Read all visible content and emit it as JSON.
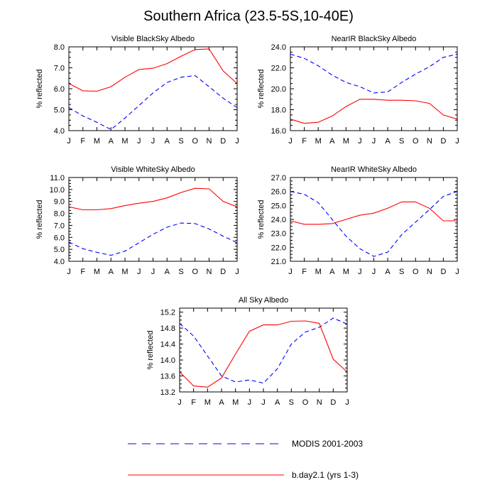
{
  "figure": {
    "title": "Southern Africa (23.5-5S,10-40E)"
  },
  "legend": [
    {
      "label": "MODIS 2001-2003",
      "color": "#0000ff",
      "dash": "dashed"
    },
    {
      "label": "b.day2.1 (yrs 1-3)",
      "color": "#ff0000",
      "dash": "solid"
    }
  ],
  "chart_data": [
    {
      "type": "line",
      "title": "Visible BlackSky Albedo",
      "ylabel": "% reflected",
      "x": [
        "J",
        "F",
        "M",
        "A",
        "M",
        "J",
        "J",
        "A",
        "S",
        "O",
        "N",
        "D",
        "J"
      ],
      "ylim": [
        4.0,
        8.0
      ],
      "yticks": [
        4.0,
        5.0,
        6.0,
        7.0,
        8.0
      ],
      "ytick_labels": [
        "4.0",
        "5.0",
        "6.0",
        "7.0",
        "8.0"
      ],
      "series": [
        {
          "name": "MODIS 2001-2003",
          "color": "#0000ff",
          "dash": "dashed",
          "values": [
            5.1,
            4.7,
            4.4,
            4.05,
            4.6,
            5.2,
            5.8,
            6.3,
            6.55,
            6.63,
            6.1,
            5.55,
            5.1
          ]
        },
        {
          "name": "b.day2.1 (yrs 1-3)",
          "color": "#ff0000",
          "dash": "solid",
          "values": [
            6.25,
            5.9,
            5.88,
            6.1,
            6.55,
            6.92,
            6.98,
            7.2,
            7.55,
            7.87,
            7.9,
            6.85,
            6.25
          ]
        }
      ]
    },
    {
      "type": "line",
      "title": "NearIR BlackSky Albedo",
      "ylabel": "% reflected",
      "x": [
        "J",
        "F",
        "M",
        "A",
        "M",
        "J",
        "J",
        "A",
        "S",
        "O",
        "N",
        "D",
        "J"
      ],
      "ylim": [
        16.0,
        24.0
      ],
      "yticks": [
        16.0,
        18.0,
        20.0,
        22.0,
        24.0
      ],
      "ytick_labels": [
        "16.0",
        "18.0",
        "20.0",
        "22.0",
        "24.0"
      ],
      "series": [
        {
          "name": "MODIS 2001-2003",
          "color": "#0000ff",
          "dash": "dashed",
          "values": [
            23.3,
            22.9,
            22.2,
            21.3,
            20.6,
            20.2,
            19.6,
            19.7,
            20.6,
            21.4,
            22.1,
            23.0,
            23.3
          ]
        },
        {
          "name": "b.day2.1 (yrs 1-3)",
          "color": "#ff0000",
          "dash": "solid",
          "values": [
            17.1,
            16.7,
            16.8,
            17.4,
            18.3,
            19.0,
            19.0,
            18.9,
            18.9,
            18.85,
            18.6,
            17.5,
            17.1
          ]
        }
      ]
    },
    {
      "type": "line",
      "title": "Visible WhiteSky Albedo",
      "ylabel": "% reflected",
      "x": [
        "J",
        "F",
        "M",
        "A",
        "M",
        "J",
        "J",
        "A",
        "S",
        "O",
        "N",
        "D",
        "J"
      ],
      "ylim": [
        4.0,
        11.0
      ],
      "yticks": [
        4.0,
        5.0,
        6.0,
        7.0,
        8.0,
        9.0,
        10.0,
        11.0
      ],
      "ytick_labels": [
        "4.0",
        "5.0",
        "6.0",
        "7.0",
        "8.0",
        "9.0",
        "10.0",
        "11.0"
      ],
      "series": [
        {
          "name": "MODIS 2001-2003",
          "color": "#0000ff",
          "dash": "dashed",
          "values": [
            5.6,
            5.05,
            4.75,
            4.5,
            4.85,
            5.55,
            6.25,
            6.85,
            7.2,
            7.15,
            6.7,
            6.1,
            5.55
          ]
        },
        {
          "name": "b.day2.1 (yrs 1-3)",
          "color": "#ff0000",
          "dash": "solid",
          "values": [
            8.55,
            8.3,
            8.3,
            8.4,
            8.65,
            8.85,
            9.0,
            9.3,
            9.75,
            10.1,
            10.05,
            9.0,
            8.55
          ]
        }
      ]
    },
    {
      "type": "line",
      "title": "NearIR WhiteSky Albedo",
      "ylabel": "% reflected",
      "x": [
        "J",
        "F",
        "M",
        "A",
        "M",
        "J",
        "J",
        "A",
        "S",
        "O",
        "N",
        "D",
        "J"
      ],
      "ylim": [
        21.0,
        27.0
      ],
      "yticks": [
        21.0,
        22.0,
        23.0,
        24.0,
        25.0,
        26.0,
        27.0
      ],
      "ytick_labels": [
        "21.0",
        "22.0",
        "23.0",
        "24.0",
        "25.0",
        "26.0",
        "27.0"
      ],
      "series": [
        {
          "name": "MODIS 2001-2003",
          "color": "#0000ff",
          "dash": "dashed",
          "values": [
            26.0,
            25.8,
            25.2,
            24.0,
            22.8,
            21.9,
            21.35,
            21.65,
            22.9,
            23.8,
            24.7,
            25.65,
            26.0
          ]
        },
        {
          "name": "b.day2.1 (yrs 1-3)",
          "color": "#ff0000",
          "dash": "solid",
          "values": [
            23.9,
            23.65,
            23.65,
            23.7,
            24.0,
            24.3,
            24.45,
            24.8,
            25.25,
            25.25,
            24.8,
            23.9,
            23.9
          ]
        }
      ]
    },
    {
      "type": "line",
      "title": "All Sky Albedo",
      "ylabel": "% reflected",
      "x": [
        "J",
        "F",
        "M",
        "A",
        "M",
        "J",
        "J",
        "A",
        "S",
        "O",
        "N",
        "D",
        "J"
      ],
      "ylim": [
        13.2,
        15.3
      ],
      "yticks": [
        13.2,
        13.6,
        14.0,
        14.4,
        14.8,
        15.2
      ],
      "ytick_labels": [
        "13.2",
        "13.6",
        "14.0",
        "14.4",
        "14.8",
        "15.2"
      ],
      "series": [
        {
          "name": "MODIS 2001-2003",
          "color": "#0000ff",
          "dash": "dashed",
          "values": [
            14.92,
            14.6,
            14.1,
            13.6,
            13.45,
            13.5,
            13.42,
            13.78,
            14.4,
            14.7,
            14.82,
            15.05,
            14.9
          ]
        },
        {
          "name": "b.day2.1 (yrs 1-3)",
          "color": "#ff0000",
          "dash": "solid",
          "values": [
            13.7,
            13.35,
            13.32,
            13.55,
            14.15,
            14.72,
            14.88,
            14.88,
            14.97,
            14.98,
            14.92,
            14.02,
            13.7
          ]
        }
      ]
    }
  ]
}
